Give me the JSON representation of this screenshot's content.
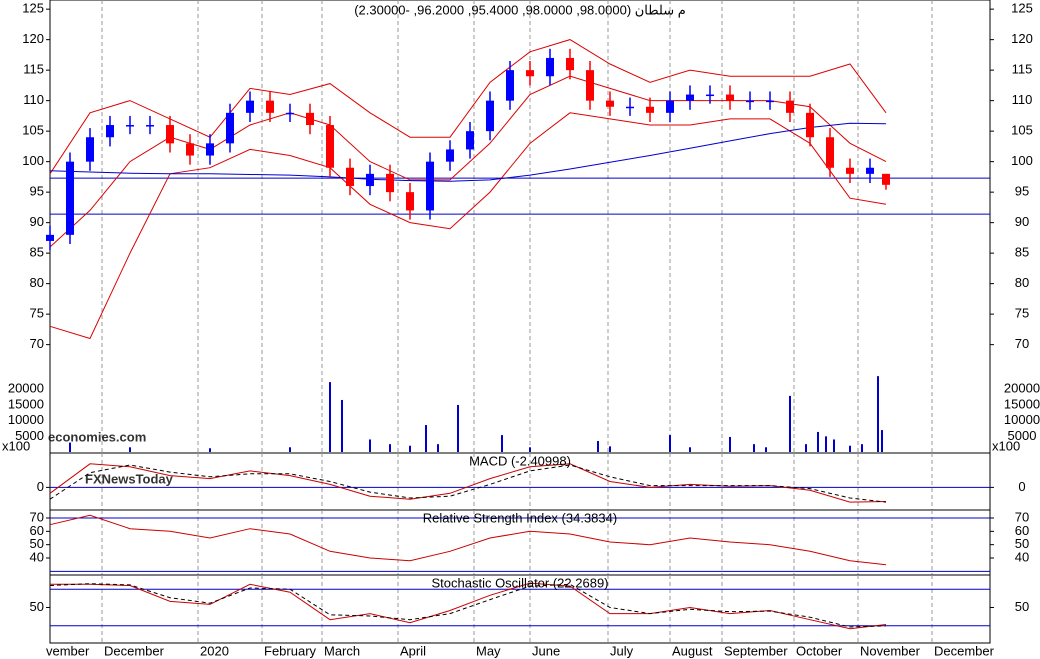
{
  "chart_data": [
    {
      "type": "candlestick",
      "title": "م سلطان (98.0000, 98.0000, 95.4000, 96.2000, -2.30000)",
      "x": [
        0,
        5,
        10,
        15,
        20,
        25,
        30,
        35,
        40,
        45,
        50,
        55,
        60,
        65,
        70,
        75,
        80,
        85,
        90,
        95,
        100,
        105,
        110,
        115,
        120,
        125,
        130,
        135,
        140,
        145,
        150,
        155,
        160,
        165,
        170,
        175,
        180,
        185,
        190,
        195,
        200,
        205,
        209
      ],
      "open": [
        87,
        88,
        100,
        104,
        106,
        106,
        106,
        103,
        101,
        103,
        108,
        110,
        108,
        108,
        106,
        99,
        96,
        98,
        95,
        92,
        100,
        102,
        105,
        110,
        115,
        114,
        117,
        115,
        110,
        109,
        109,
        108,
        110,
        111,
        111,
        110,
        110,
        110,
        108,
        104,
        99,
        98,
        98
      ],
      "high": [
        89.5,
        101.5,
        105.5,
        107.5,
        107.5,
        107.5,
        107.5,
        104.5,
        104.5,
        109.5,
        111.5,
        111.5,
        109.5,
        109.5,
        107.5,
        100.5,
        99.5,
        99.5,
        96.5,
        101.5,
        103.5,
        106.5,
        111.5,
        116.5,
        116.5,
        118.5,
        118.5,
        116.5,
        111.5,
        110.5,
        110.5,
        111.5,
        112.5,
        112.5,
        112.5,
        111.5,
        111.5,
        111.5,
        109.5,
        105.5,
        100.5,
        100.5,
        98
      ],
      "low": [
        85.5,
        86.5,
        98.5,
        102.5,
        104.5,
        104.5,
        101.5,
        99.5,
        99.5,
        101.5,
        106.5,
        106.5,
        106.5,
        104.5,
        97.5,
        94.5,
        94.5,
        93.5,
        90.5,
        90.5,
        98.5,
        100.5,
        103.5,
        108.5,
        112.5,
        112.5,
        113.5,
        108.5,
        107.5,
        107.5,
        106.5,
        106.5,
        108.5,
        109.5,
        108.5,
        108.5,
        108.5,
        106.5,
        102.5,
        97.5,
        96.5,
        96.5,
        95.4
      ],
      "close": [
        88,
        100,
        104,
        106,
        106,
        106,
        103,
        101,
        103,
        108,
        110,
        108,
        108,
        106,
        99,
        96,
        98,
        95,
        92,
        100,
        102,
        105,
        110,
        115,
        114,
        117,
        115,
        110,
        109,
        109,
        108,
        110,
        111,
        111,
        110,
        110,
        110,
        108,
        104,
        99,
        98,
        99,
        96.2
      ],
      "up_color": "#0000ff",
      "down_color": "#ff0000",
      "ylim": [
        52.4,
        126.5
      ],
      "yticks": [
        70,
        75,
        80,
        85,
        90,
        95,
        100,
        105,
        110,
        115,
        120,
        125
      ],
      "line_x": [
        0,
        10,
        20,
        30,
        40,
        50,
        60,
        70,
        80,
        90,
        100,
        110,
        120,
        130,
        140,
        150,
        160,
        170,
        180,
        190,
        200,
        209
      ],
      "lines": [
        {
          "color": "#dd0000",
          "values": [
            98,
            108,
            110,
            107,
            104,
            112,
            111,
            112.8,
            108,
            104,
            104,
            113,
            118,
            120,
            116,
            113,
            115,
            114,
            114,
            114,
            116,
            108
          ]
        },
        {
          "color": "#dd0000",
          "values": [
            86,
            92,
            100,
            104,
            102,
            106,
            108,
            106,
            100,
            97,
            97,
            103,
            111,
            114,
            112,
            110,
            110,
            110,
            110,
            109,
            103,
            100
          ]
        },
        {
          "color": "#dd0000",
          "values": [
            73,
            71,
            85,
            98,
            99,
            102,
            101,
            99,
            93,
            90,
            89,
            95,
            103,
            108,
            107,
            106,
            106,
            107,
            107,
            103,
            94,
            93
          ]
        },
        {
          "color": "#0000cc",
          "values": [
            98.5,
            98.3,
            98.1,
            98,
            98,
            97.9,
            97.8,
            97.5,
            97.1,
            96.9,
            96.8,
            97,
            97.8,
            98.8,
            99.9,
            101,
            102.2,
            103.4,
            104.6,
            105.6,
            106.3,
            106.2
          ]
        }
      ],
      "hlines": {
        "color": "#0000cc",
        "values": [
          97.3,
          91.4
        ]
      },
      "volume": {
        "color": "#0000cc",
        "unit_label": "x100",
        "x": [
          5,
          20,
          40,
          60,
          70,
          73,
          80,
          85,
          90,
          94,
          97,
          102,
          113,
          120,
          137,
          140,
          155,
          160,
          170,
          176,
          179,
          185,
          189,
          192,
          194,
          196,
          200,
          203,
          207,
          208
        ],
        "values": [
          3000,
          1500,
          1200,
          1500,
          22300,
          16600,
          4000,
          2500,
          2000,
          8600,
          2500,
          15000,
          5400,
          1500,
          3500,
          1800,
          5400,
          1500,
          4800,
          2500,
          1500,
          17900,
          2500,
          6400,
          5000,
          4000,
          2000,
          2500,
          24200,
          7000
        ],
        "ylim": [
          0,
          144200
        ],
        "yticks": [
          5000,
          10000,
          15000,
          20000
        ]
      },
      "watermarks": [
        "economies.com",
        "FXNewsToday"
      ]
    },
    {
      "type": "line",
      "title": "MACD (-2.40998)",
      "x": [
        0,
        10,
        20,
        30,
        40,
        50,
        60,
        70,
        80,
        90,
        100,
        110,
        120,
        130,
        140,
        150,
        160,
        170,
        180,
        190,
        200,
        209
      ],
      "series": [
        {
          "color": "#cc0000",
          "dashed": false,
          "values": [
            -1,
            4,
            3.5,
            2,
            1.5,
            2.8,
            2,
            0.5,
            -1.5,
            -2,
            -1,
            1.5,
            3.5,
            4,
            1,
            0,
            0.5,
            0.2,
            0.3,
            -0.5,
            -2.5,
            -2.4
          ]
        },
        {
          "color": "#000000",
          "dashed": true,
          "values": [
            -2,
            2.5,
            3.8,
            2.6,
            1.8,
            2.3,
            2.3,
            1,
            -0.8,
            -1.8,
            -1.5,
            0.5,
            2.8,
            3.8,
            1.8,
            0.3,
            0.3,
            0.3,
            0.3,
            -0.2,
            -1.8,
            -2.5
          ]
        }
      ],
      "ylim": [
        -3.5,
        5.5
      ],
      "yticks": [
        0
      ],
      "hlines": {
        "color": "#0000cc",
        "values": [
          0
        ]
      }
    },
    {
      "type": "line",
      "title": "Relative Strength Index (34.3834)",
      "x": [
        0,
        10,
        20,
        30,
        40,
        50,
        60,
        70,
        80,
        90,
        100,
        110,
        120,
        130,
        140,
        150,
        160,
        170,
        180,
        190,
        200,
        209
      ],
      "series": [
        {
          "color": "#cc0000",
          "dashed": false,
          "values": [
            65,
            72,
            62,
            60,
            55,
            62,
            58,
            45,
            40,
            38,
            45,
            55,
            60,
            58,
            52,
            50,
            55,
            52,
            50,
            45,
            38,
            35
          ]
        }
      ],
      "ylim": [
        28.75,
        75.25
      ],
      "yticks": [
        40,
        50,
        60,
        70
      ],
      "hlines": {
        "color": "#0000cc",
        "values": [
          70,
          30
        ]
      }
    },
    {
      "type": "line",
      "title": "Stochastic Oscillator (22.2689)",
      "x": [
        0,
        10,
        20,
        30,
        40,
        50,
        60,
        70,
        80,
        90,
        100,
        110,
        120,
        130,
        140,
        150,
        160,
        170,
        180,
        190,
        200,
        209
      ],
      "series": [
        {
          "color": "#cc0000",
          "dashed": false,
          "values": [
            88,
            88,
            86,
            60,
            55,
            88,
            75,
            30,
            40,
            25,
            45,
            70,
            90,
            85,
            40,
            40,
            50,
            40,
            45,
            30,
            15,
            22
          ]
        },
        {
          "color": "#000000",
          "dashed": true,
          "values": [
            86,
            89,
            87,
            66,
            57,
            82,
            80,
            38,
            36,
            30,
            40,
            63,
            85,
            88,
            50,
            40,
            47,
            43,
            44,
            34,
            18,
            20
          ]
        }
      ],
      "ylim": [
        -5,
        100
      ],
      "yticks": [
        50
      ],
      "hlines": {
        "color": "#0000cc",
        "values": [
          80,
          20
        ]
      },
      "xlim": [
        0,
        235
      ],
      "xticks": [
        {
          "value": 0,
          "label": "vember"
        },
        {
          "value": 13,
          "label": "December"
        },
        {
          "value": 37,
          "label": "2020"
        },
        {
          "value": 53,
          "label": "February"
        },
        {
          "value": 68,
          "label": "March"
        },
        {
          "value": 87,
          "label": "April"
        },
        {
          "value": 106,
          "label": "May"
        },
        {
          "value": 120,
          "label": "June"
        },
        {
          "value": 139.5,
          "label": "July"
        },
        {
          "value": 155,
          "label": "August"
        },
        {
          "value": 168,
          "label": "September"
        },
        {
          "value": 186,
          "label": "October"
        },
        {
          "value": 202,
          "label": "November"
        },
        {
          "value": 220.5,
          "label": "December"
        }
      ]
    }
  ]
}
